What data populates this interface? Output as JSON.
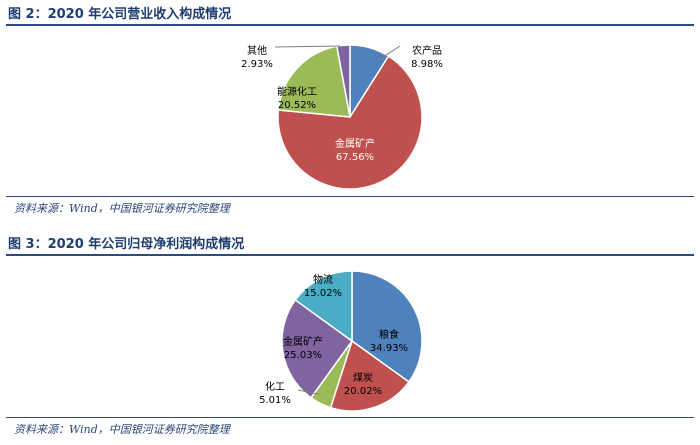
{
  "charts": [
    {
      "title": "图 2：2020 年公司营业收入构成情况",
      "source": "资料来源：Wind，中国银河证券研究院整理"
    },
    {
      "title": "图 3：2020 年公司归母净利润构成情况",
      "source": "资料来源：Wind，中国银河证券研究院整理"
    }
  ],
  "chart_data": [
    {
      "type": "pie",
      "title": "图 2：2020 年公司营业收入构成情况",
      "start_angle_deg": 0,
      "direction": "clockwise",
      "slices": [
        {
          "label": "农产品",
          "value": 8.98,
          "value_label": "8.98%",
          "color": "#4f81bd"
        },
        {
          "label": "金属矿产",
          "value": 67.56,
          "value_label": "67.56%",
          "color": "#c0504d"
        },
        {
          "label": "能源化工",
          "value": 20.52,
          "value_label": "20.52%",
          "color": "#9bbb59"
        },
        {
          "label": "其他",
          "value": 2.93,
          "value_label": "2.93%",
          "color": "#8064a2"
        }
      ]
    },
    {
      "type": "pie",
      "title": "图 3：2020 年公司归母净利润构成情况",
      "start_angle_deg": 0,
      "direction": "clockwise",
      "slices": [
        {
          "label": "粮食",
          "value": 34.93,
          "value_label": "34.93%",
          "color": "#4f81bd"
        },
        {
          "label": "煤炭",
          "value": 20.02,
          "value_label": "20.02%",
          "color": "#c0504d"
        },
        {
          "label": "化工",
          "value": 5.01,
          "value_label": "5.01%",
          "color": "#9bbb59"
        },
        {
          "label": "金属矿产",
          "value": 25.03,
          "value_label": "25.03%",
          "color": "#8064a2"
        },
        {
          "label": "物流",
          "value": 15.02,
          "value_label": "15.02%",
          "color": "#4bacc6"
        }
      ]
    }
  ]
}
